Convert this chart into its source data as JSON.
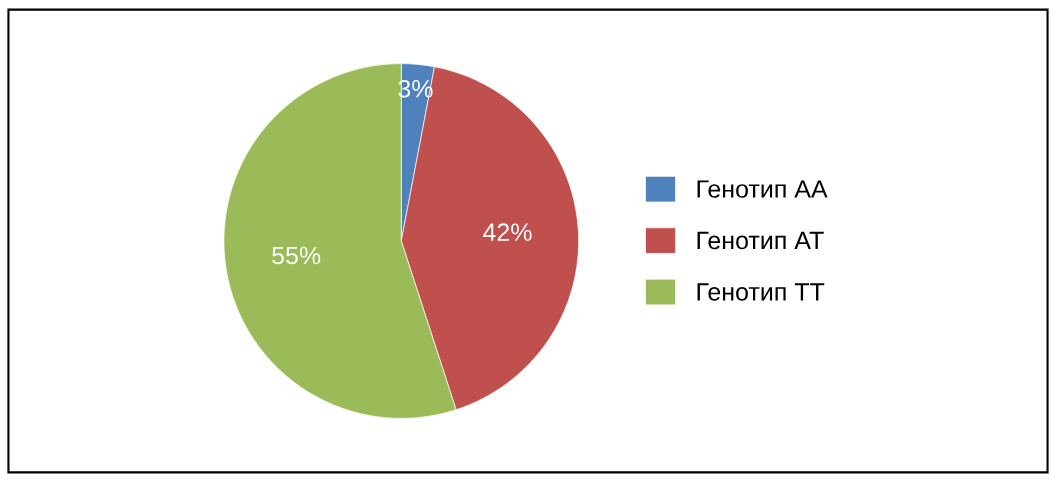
{
  "chart_data": {
    "type": "pie",
    "categories": [
      "Генотип АА",
      "Генотип АТ",
      "Генотип ТТ"
    ],
    "values": [
      3,
      42,
      55
    ],
    "colors": [
      "#4f81bd",
      "#c0504d",
      "#9bbb59"
    ],
    "value_labels": [
      "3%",
      "42%",
      "55%"
    ],
    "legend": "right"
  }
}
